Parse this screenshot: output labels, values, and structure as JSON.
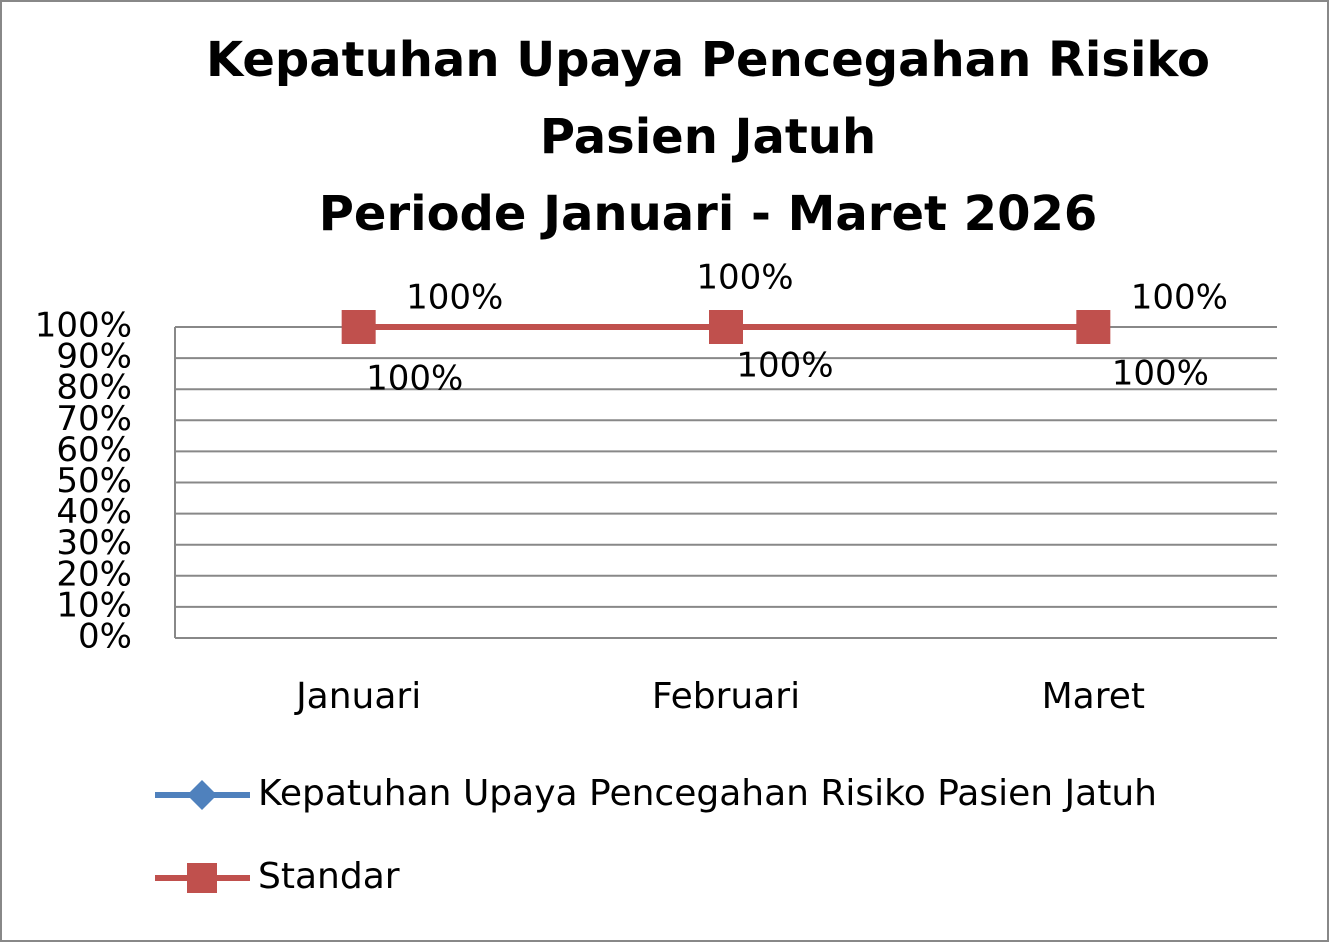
{
  "chart_data": {
    "type": "line",
    "title": [
      "Kepatuhan Upaya Pencegahan Risiko",
      "Pasien Jatuh",
      "Periode Januari - Maret 2026"
    ],
    "categories": [
      "Januari",
      "Februari",
      "Maret"
    ],
    "series": [
      {
        "name": "Kepatuhan Upaya Pencegahan Risiko Pasien Jatuh",
        "color": "#4f81bd",
        "marker": "diamond",
        "values": [
          100,
          100,
          100
        ],
        "value_labels": [
          "100%",
          "100%",
          "100%"
        ]
      },
      {
        "name": "Standar",
        "color": "#c0504d",
        "marker": "square",
        "values": [
          100,
          100,
          100
        ],
        "value_labels": [
          "100%",
          "100%",
          "100%"
        ]
      }
    ],
    "ylim": [
      0,
      100
    ],
    "yticks": [
      {
        "value": 0,
        "label": "0%"
      },
      {
        "value": 10,
        "label": "10%"
      },
      {
        "value": 20,
        "label": "20%"
      },
      {
        "value": 30,
        "label": "30%"
      },
      {
        "value": 40,
        "label": "40%"
      },
      {
        "value": 50,
        "label": "50%"
      },
      {
        "value": 60,
        "label": "60%"
      },
      {
        "value": 70,
        "label": "70%"
      },
      {
        "value": 80,
        "label": "80%"
      },
      {
        "value": 90,
        "label": "90%"
      },
      {
        "value": 100,
        "label": "100%"
      }
    ],
    "grid": true,
    "legend": "bottom"
  }
}
